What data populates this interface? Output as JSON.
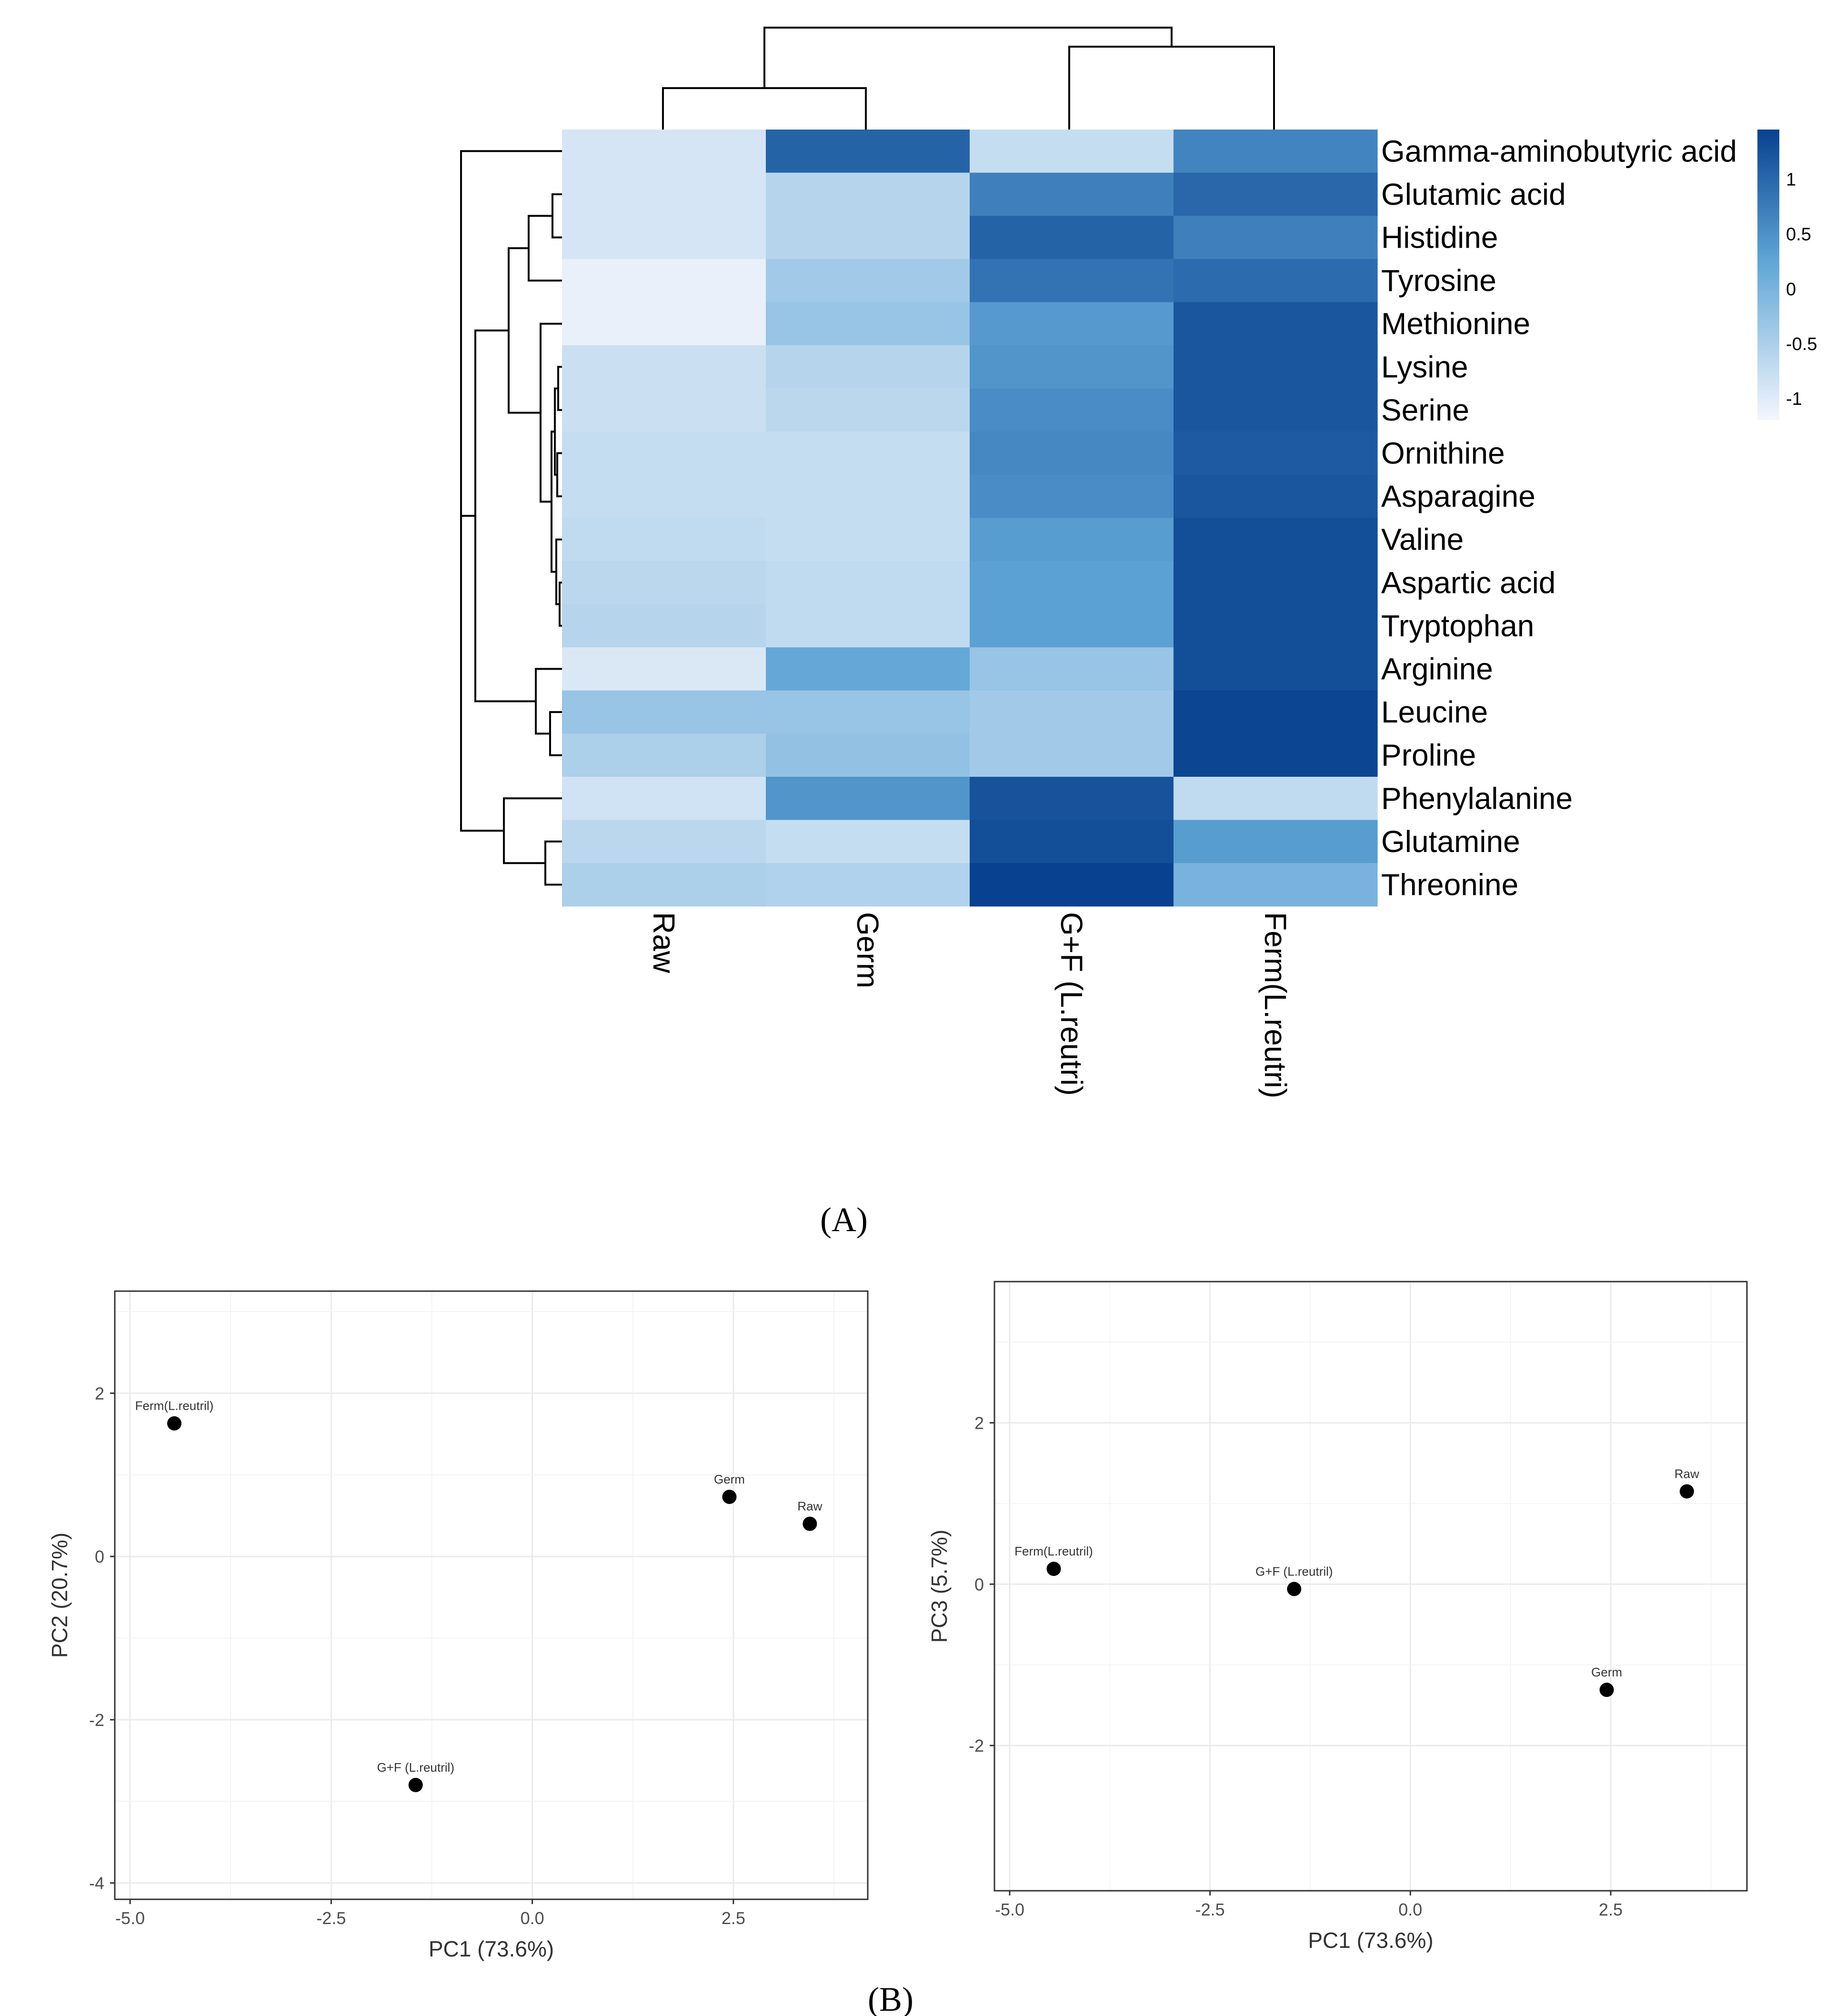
{
  "figure": {
    "panel_a_label": "(A)",
    "panel_b_label": "(B)"
  },
  "chart_data": [
    {
      "type": "heatmap",
      "title": "",
      "columns": [
        "Raw",
        "Germ",
        "G+F (L.reutri)",
        "Ferm(L.reutri)"
      ],
      "rows": [
        "Gamma-aminobutyric acid",
        "Glutamic acid",
        "Histidine",
        "Tyrosine",
        "Methionine",
        "Lysine",
        "Serine",
        "Ornithine",
        "Asparagine",
        "Valine",
        "Aspartic acid",
        "Tryptophan",
        "Arginine",
        "Leucine",
        "Proline",
        "Phenylalanine",
        "Glutamine",
        "Threonine"
      ],
      "values": [
        [
          -0.9,
          1.05,
          -0.75,
          0.65
        ],
        [
          -0.9,
          -0.6,
          0.7,
          1.0
        ],
        [
          -0.9,
          -0.6,
          1.05,
          0.7
        ],
        [
          -1.1,
          -0.4,
          0.85,
          0.95
        ],
        [
          -1.1,
          -0.3,
          0.4,
          1.2
        ],
        [
          -0.8,
          -0.6,
          0.45,
          1.2
        ],
        [
          -0.8,
          -0.65,
          0.55,
          1.2
        ],
        [
          -0.75,
          -0.75,
          0.6,
          1.15
        ],
        [
          -0.75,
          -0.75,
          0.55,
          1.2
        ],
        [
          -0.7,
          -0.75,
          0.35,
          1.3
        ],
        [
          -0.65,
          -0.7,
          0.3,
          1.3
        ],
        [
          -0.6,
          -0.7,
          0.3,
          1.3
        ],
        [
          -0.95,
          0.2,
          -0.3,
          1.3
        ],
        [
          -0.3,
          -0.3,
          -0.4,
          1.4
        ],
        [
          -0.5,
          -0.25,
          -0.4,
          1.4
        ],
        [
          -0.85,
          0.45,
          1.25,
          -0.7
        ],
        [
          -0.65,
          -0.75,
          1.3,
          0.35
        ],
        [
          -0.5,
          -0.55,
          1.45,
          0.0
        ]
      ],
      "color_scale": {
        "min": -1.2,
        "max": 1.45,
        "low_color": "#f3f6fd",
        "mid_color": "#5fa5d6",
        "high_color": "#08418f",
        "ticks": [
          1,
          0.5,
          0,
          -0.5,
          -1
        ],
        "tick_labels": [
          "1",
          "0.5",
          "0",
          "-0.5",
          "-1"
        ]
      }
    },
    {
      "type": "scatter",
      "title": "",
      "xlabel": "PC1 (73.6%)",
      "ylabel": "PC2 (20.7%)",
      "xlim": [
        -5.19,
        4.17
      ],
      "ylim": [
        -4.2,
        3.25
      ],
      "xticks": [
        -5.0,
        -2.5,
        0.0,
        2.5
      ],
      "xtick_labels": [
        "-5.0",
        "-2.5",
        "0.0",
        "2.5"
      ],
      "yticks": [
        2,
        0,
        -2,
        -4
      ],
      "ytick_labels": [
        "2",
        "0",
        "-2",
        "-4"
      ],
      "grid": true,
      "points": [
        {
          "label": "Ferm(L.reutril)",
          "x": -4.45,
          "y": 1.63
        },
        {
          "label": "Germ",
          "x": 2.45,
          "y": 0.73
        },
        {
          "label": "Raw",
          "x": 3.45,
          "y": 0.4
        },
        {
          "label": "G+F (L.reutril)",
          "x": -1.45,
          "y": -2.8
        }
      ]
    },
    {
      "type": "scatter",
      "title": "",
      "xlabel": "PC1 (73.6%)",
      "ylabel": "PC3 (5.7%)",
      "xlim": [
        -5.19,
        4.2
      ],
      "ylim": [
        -3.8,
        3.75
      ],
      "xticks": [
        -5.0,
        -2.5,
        0.0,
        2.5
      ],
      "xtick_labels": [
        "-5.0",
        "-2.5",
        "0.0",
        "2.5"
      ],
      "yticks": [
        2,
        0,
        -2
      ],
      "ytick_labels": [
        "2",
        "0",
        "-2"
      ],
      "grid": true,
      "points": [
        {
          "label": "Raw",
          "x": 3.45,
          "y": 1.15
        },
        {
          "label": "Ferm(L.reutril)",
          "x": -4.45,
          "y": 0.19
        },
        {
          "label": "G+F (L.reutril)",
          "x": -1.45,
          "y": -0.06
        },
        {
          "label": "Germ",
          "x": 2.45,
          "y": -1.31
        }
      ]
    }
  ]
}
